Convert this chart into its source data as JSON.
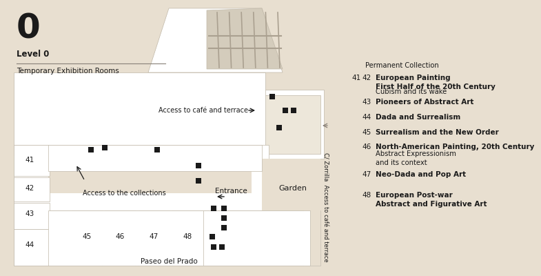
{
  "bg_color": "#e8dfd0",
  "wall_color": "#ffffff",
  "dark_color": "#1a1a1a",
  "edge_color": "#c0b8a8",
  "win_color": "#d4ccbc",
  "permanent_title": "Permanent Collection",
  "rooms": [
    {
      "num": "41 42",
      "bold": "European Painting\nFirst Half of the 20th Century",
      "normal": "Cubism and its wake"
    },
    {
      "num": "43",
      "bold": "Pioneers of Abstract Art",
      "normal": ""
    },
    {
      "num": "44",
      "bold": "Dada and Surrealism",
      "normal": ""
    },
    {
      "num": "45",
      "bold": "Surrealism and the New Order",
      "normal": ""
    },
    {
      "num": "46",
      "bold": "North-American Painting, 20th Century",
      "normal": "Abstract Expressionism\nand its context"
    },
    {
      "num": "47",
      "bold": "Neo-Dada and Pop Art",
      "normal": ""
    },
    {
      "num": "48",
      "bold": "European Post-war\nAbstract and Figurative Art",
      "normal": ""
    }
  ]
}
